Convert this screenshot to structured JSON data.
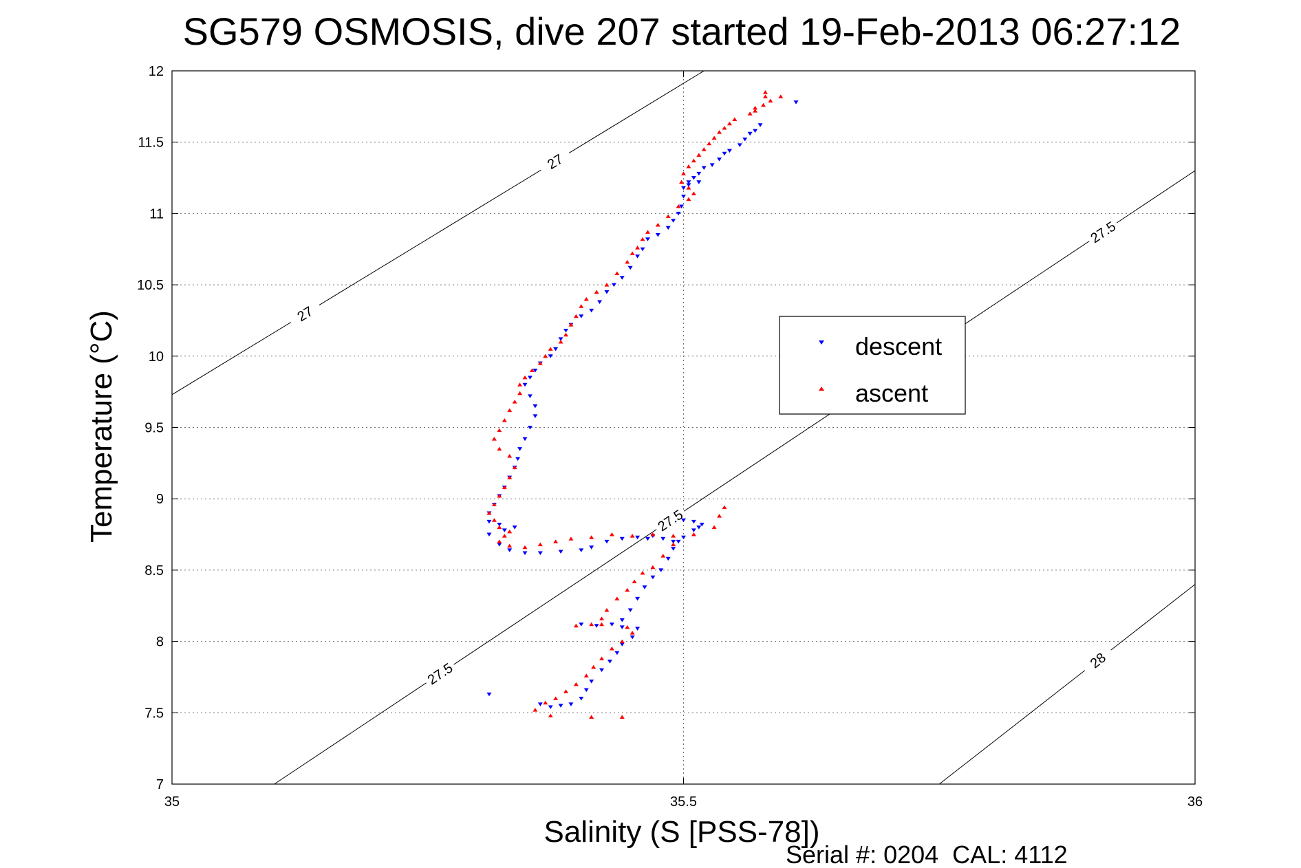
{
  "chart_data": {
    "type": "scatter",
    "title": "SG579 OSMOSIS, dive 207 started 19-Feb-2013 06:27:12",
    "xlabel": "Salinity (S [PSS-78])",
    "ylabel": "Temperature (°C)",
    "xlim": [
      35,
      36
    ],
    "ylim": [
      7,
      12
    ],
    "xticks": [
      "35",
      "35.5",
      "36"
    ],
    "yticks": [
      "7",
      "7.5",
      "8",
      "8.5",
      "9",
      "9.5",
      "10",
      "10.5",
      "11",
      "11.5",
      "12"
    ],
    "grid": true,
    "legend_placement": "center-right",
    "footer": "Serial #: 0204  CAL: 4112",
    "series": [
      {
        "name": "descent",
        "marker": "down-triangle",
        "color": "#0000ff",
        "points": [
          [
            35.575,
            11.62
          ],
          [
            35.57,
            11.58
          ],
          [
            35.565,
            11.56
          ],
          [
            35.56,
            11.52
          ],
          [
            35.555,
            11.48
          ],
          [
            35.545,
            11.44
          ],
          [
            35.54,
            11.42
          ],
          [
            35.535,
            11.38
          ],
          [
            35.528,
            11.34
          ],
          [
            35.52,
            11.32
          ],
          [
            35.515,
            11.28
          ],
          [
            35.51,
            11.25
          ],
          [
            35.505,
            11.22
          ],
          [
            35.5,
            11.18
          ],
          [
            35.5,
            11.12
          ],
          [
            35.498,
            11.05
          ],
          [
            35.495,
            11.0
          ],
          [
            35.49,
            10.95
          ],
          [
            35.485,
            10.9
          ],
          [
            35.475,
            10.85
          ],
          [
            35.465,
            10.82
          ],
          [
            35.46,
            10.75
          ],
          [
            35.455,
            10.7
          ],
          [
            35.448,
            10.62
          ],
          [
            35.44,
            10.55
          ],
          [
            35.432,
            10.5
          ],
          [
            35.425,
            10.45
          ],
          [
            35.418,
            10.38
          ],
          [
            35.41,
            10.32
          ],
          [
            35.4,
            10.28
          ],
          [
            35.39,
            10.22
          ],
          [
            35.385,
            10.18
          ],
          [
            35.38,
            10.12
          ],
          [
            35.375,
            10.05
          ],
          [
            35.37,
            10.0
          ],
          [
            35.36,
            9.95
          ],
          [
            35.355,
            9.9
          ],
          [
            35.35,
            9.85
          ],
          [
            35.345,
            9.8
          ],
          [
            35.35,
            9.72
          ],
          [
            35.355,
            9.65
          ],
          [
            35.355,
            9.58
          ],
          [
            35.35,
            9.5
          ],
          [
            35.345,
            9.42
          ],
          [
            35.34,
            9.35
          ],
          [
            35.338,
            9.28
          ],
          [
            35.335,
            9.22
          ],
          [
            35.33,
            9.15
          ],
          [
            35.325,
            9.08
          ],
          [
            35.32,
            9.02
          ],
          [
            35.315,
            8.96
          ],
          [
            35.31,
            8.9
          ],
          [
            35.31,
            8.84
          ],
          [
            35.32,
            8.82
          ],
          [
            35.335,
            8.8
          ],
          [
            35.325,
            8.78
          ],
          [
            35.31,
            8.75
          ],
          [
            35.32,
            8.68
          ],
          [
            35.33,
            8.64
          ],
          [
            35.345,
            8.62
          ],
          [
            35.36,
            8.62
          ],
          [
            35.38,
            8.63
          ],
          [
            35.4,
            8.64
          ],
          [
            35.41,
            8.66
          ],
          [
            35.425,
            8.7
          ],
          [
            35.44,
            8.72
          ],
          [
            35.455,
            8.73
          ],
          [
            35.465,
            8.72
          ],
          [
            35.47,
            8.74
          ],
          [
            35.48,
            8.72
          ],
          [
            35.49,
            8.7
          ],
          [
            35.5,
            8.73
          ],
          [
            35.51,
            8.78
          ],
          [
            35.515,
            8.8
          ],
          [
            35.518,
            8.82
          ],
          [
            35.51,
            8.84
          ],
          [
            35.5,
            8.85
          ],
          [
            35.495,
            8.7
          ],
          [
            35.49,
            8.65
          ],
          [
            35.485,
            8.58
          ],
          [
            35.478,
            8.5
          ],
          [
            35.47,
            8.45
          ],
          [
            35.462,
            8.38
          ],
          [
            35.455,
            8.3
          ],
          [
            35.448,
            8.22
          ],
          [
            35.44,
            8.15
          ],
          [
            35.43,
            8.12
          ],
          [
            35.415,
            8.11
          ],
          [
            35.4,
            8.12
          ],
          [
            35.44,
            8.1
          ],
          [
            35.455,
            8.09
          ],
          [
            35.45,
            8.03
          ],
          [
            35.44,
            7.98
          ],
          [
            35.435,
            7.92
          ],
          [
            35.428,
            7.86
          ],
          [
            35.42,
            7.8
          ],
          [
            35.41,
            7.72
          ],
          [
            35.405,
            7.66
          ],
          [
            35.4,
            7.6
          ],
          [
            35.39,
            7.56
          ],
          [
            35.38,
            7.55
          ],
          [
            35.37,
            7.54
          ],
          [
            35.36,
            7.56
          ],
          [
            35.31,
            7.63
          ],
          [
            35.61,
            11.78
          ],
          [
            35.505,
            11.2
          ],
          [
            35.515,
            11.22
          ]
        ]
      },
      {
        "name": "ascent",
        "marker": "up-triangle",
        "color": "#ff0000",
        "points": [
          [
            35.58,
            11.82
          ],
          [
            35.585,
            11.79
          ],
          [
            35.578,
            11.76
          ],
          [
            35.57,
            11.74
          ],
          [
            35.57,
            11.72
          ],
          [
            35.565,
            11.7
          ],
          [
            35.55,
            11.66
          ],
          [
            35.545,
            11.63
          ],
          [
            35.54,
            11.6
          ],
          [
            35.535,
            11.57
          ],
          [
            35.53,
            11.53
          ],
          [
            35.525,
            11.49
          ],
          [
            35.52,
            11.45
          ],
          [
            35.515,
            11.41
          ],
          [
            35.51,
            11.37
          ],
          [
            35.505,
            11.33
          ],
          [
            35.5,
            11.28
          ],
          [
            35.498,
            11.22
          ],
          [
            35.505,
            11.18
          ],
          [
            35.51,
            11.14
          ],
          [
            35.505,
            11.1
          ],
          [
            35.495,
            11.05
          ],
          [
            35.485,
            10.98
          ],
          [
            35.475,
            10.92
          ],
          [
            35.465,
            10.87
          ],
          [
            35.46,
            10.82
          ],
          [
            35.455,
            10.76
          ],
          [
            35.45,
            10.72
          ],
          [
            35.445,
            10.66
          ],
          [
            35.435,
            10.58
          ],
          [
            35.425,
            10.5
          ],
          [
            35.415,
            10.45
          ],
          [
            35.405,
            10.4
          ],
          [
            35.4,
            10.35
          ],
          [
            35.395,
            10.28
          ],
          [
            35.39,
            10.22
          ],
          [
            35.385,
            10.15
          ],
          [
            35.38,
            10.1
          ],
          [
            35.37,
            10.05
          ],
          [
            35.365,
            10.0
          ],
          [
            35.36,
            9.95
          ],
          [
            35.352,
            9.9
          ],
          [
            35.345,
            9.85
          ],
          [
            35.34,
            9.8
          ],
          [
            35.34,
            9.74
          ],
          [
            35.335,
            9.68
          ],
          [
            35.33,
            9.62
          ],
          [
            35.325,
            9.55
          ],
          [
            35.32,
            9.48
          ],
          [
            35.315,
            9.42
          ],
          [
            35.32,
            9.35
          ],
          [
            35.33,
            9.3
          ],
          [
            35.335,
            9.22
          ],
          [
            35.33,
            9.15
          ],
          [
            35.325,
            9.08
          ],
          [
            35.32,
            9.02
          ],
          [
            35.315,
            8.96
          ],
          [
            35.31,
            8.9
          ],
          [
            35.315,
            8.85
          ],
          [
            35.32,
            8.8
          ],
          [
            35.33,
            8.77
          ],
          [
            35.325,
            8.74
          ],
          [
            35.32,
            8.7
          ],
          [
            35.33,
            8.67
          ],
          [
            35.345,
            8.66
          ],
          [
            35.36,
            8.68
          ],
          [
            35.375,
            8.7
          ],
          [
            35.39,
            8.72
          ],
          [
            35.41,
            8.73
          ],
          [
            35.43,
            8.75
          ],
          [
            35.45,
            8.74
          ],
          [
            35.47,
            8.75
          ],
          [
            35.49,
            8.74
          ],
          [
            35.51,
            8.75
          ],
          [
            35.53,
            8.8
          ],
          [
            35.535,
            8.88
          ],
          [
            35.54,
            8.94
          ],
          [
            35.49,
            8.68
          ],
          [
            35.48,
            8.6
          ],
          [
            35.47,
            8.52
          ],
          [
            35.46,
            8.48
          ],
          [
            35.452,
            8.42
          ],
          [
            35.445,
            8.36
          ],
          [
            35.435,
            8.3
          ],
          [
            35.425,
            8.22
          ],
          [
            35.42,
            8.16
          ],
          [
            35.41,
            8.12
          ],
          [
            35.395,
            8.11
          ],
          [
            35.42,
            8.12
          ],
          [
            35.445,
            8.1
          ],
          [
            35.45,
            8.06
          ],
          [
            35.44,
            8.0
          ],
          [
            35.43,
            7.95
          ],
          [
            35.42,
            7.88
          ],
          [
            35.412,
            7.82
          ],
          [
            35.405,
            7.76
          ],
          [
            35.395,
            7.7
          ],
          [
            35.385,
            7.65
          ],
          [
            35.375,
            7.6
          ],
          [
            35.365,
            7.57
          ],
          [
            35.355,
            7.52
          ],
          [
            35.37,
            7.48
          ],
          [
            35.41,
            7.47
          ],
          [
            35.44,
            7.47
          ],
          [
            35.58,
            11.85
          ],
          [
            35.595,
            11.82
          ]
        ]
      }
    ],
    "contours": [
      {
        "label": "27",
        "points": [
          [
            35.0,
            9.73
          ],
          [
            35.52,
            12.0
          ]
        ]
      },
      {
        "label": "27.5",
        "points": [
          [
            35.1,
            7.0
          ],
          [
            36.0,
            11.3
          ]
        ]
      },
      {
        "label": "28",
        "points": [
          [
            35.75,
            7.0
          ],
          [
            36.0,
            8.4
          ]
        ]
      }
    ]
  }
}
